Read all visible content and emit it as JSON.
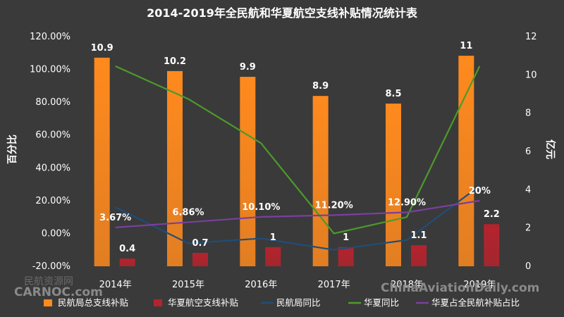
{
  "chart_data": {
    "type": "bar",
    "title": "2014-2019年全民航和华夏航空支线补贴情况统计表",
    "categories": [
      "2014年",
      "2015年",
      "2016年",
      "2017年",
      "2018年",
      "2019年"
    ],
    "ylabel_left": "百分比",
    "ylabel_right": "亿元",
    "ylim_left": [
      -0.2,
      1.2
    ],
    "yticks_left": [
      "-20.00%",
      "0.00%",
      "20.00%",
      "40.00%",
      "60.00%",
      "80.00%",
      "100.00%",
      "120.00%"
    ],
    "ylim_right": [
      0,
      12
    ],
    "yticks_right": [
      "0",
      "2",
      "4",
      "6",
      "8",
      "10",
      "12"
    ],
    "series": [
      {
        "name": "民航局总支线补贴",
        "kind": "bar",
        "axis": "right",
        "color": "#ff8a1e",
        "values": [
          10.9,
          10.2,
          9.9,
          8.9,
          8.5,
          11
        ],
        "labels": [
          "10.9",
          "10.2",
          "9.9",
          "8.9",
          "8.5",
          "11"
        ]
      },
      {
        "name": "华夏航空支线补贴",
        "kind": "bar",
        "axis": "right",
        "color": "#b5232d",
        "values": [
          0.4,
          0.7,
          1,
          1,
          1.1,
          2.2
        ],
        "labels": [
          "0.4",
          "0.7",
          "1",
          "1",
          "1.1",
          "2.2"
        ]
      },
      {
        "name": "民航局同比",
        "kind": "line",
        "axis": "left",
        "color": "#1f4e79",
        "values": [
          0.16,
          -0.06,
          -0.03,
          -0.1,
          -0.04,
          0.29
        ]
      },
      {
        "name": "华夏同比",
        "kind": "line",
        "axis": "left",
        "color": "#4c9a2a",
        "values": [
          1.02,
          0.82,
          0.55,
          0.0,
          0.1,
          1.02
        ]
      },
      {
        "name": "华夏占全民航补贴占比",
        "kind": "line",
        "axis": "left",
        "color": "#7a3fa0",
        "values": [
          0.0367,
          0.0686,
          0.101,
          0.112,
          0.129,
          0.2
        ],
        "labels": [
          "3.67%",
          "6.86%",
          "10.10%",
          "11.20%",
          "12.90%",
          "20%"
        ]
      }
    ]
  },
  "watermarks": {
    "left_cn": "民航资源网",
    "left_en": "CARNOC.com",
    "right_en": "ChinaAviationDaily.com"
  }
}
